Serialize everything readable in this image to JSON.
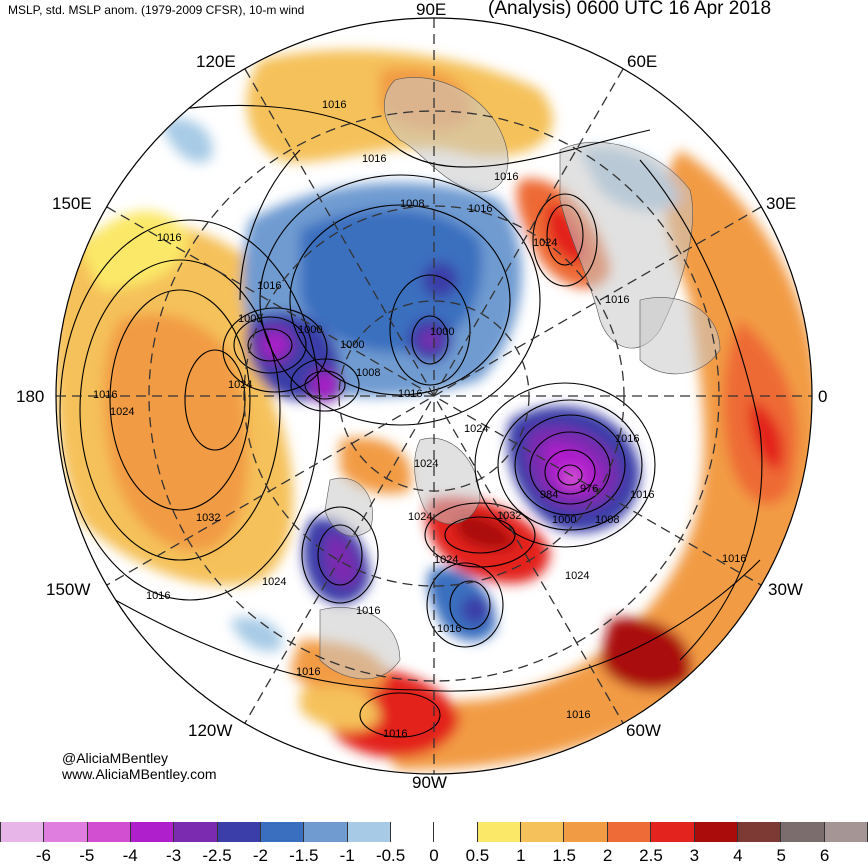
{
  "header": {
    "left_title": "MSLP, std. MSLP anom. (1979-2009 CFSR), 10-m wind",
    "right_title": "(Analysis) 0600 UTC 16 Apr 2018"
  },
  "longitude_labels": {
    "lon_90e": "90E",
    "lon_120e": "120E",
    "lon_60e": "60E",
    "lon_150e": "150E",
    "lon_30e": "30E",
    "lon_180": "180",
    "lon_0": "0",
    "lon_150w": "150W",
    "lon_30w": "30W",
    "lon_120w": "120W",
    "lon_60w": "60W",
    "lon_90w": "90W"
  },
  "isobar_labels": [
    "1016",
    "1016",
    "1016",
    "1016",
    "1008",
    "1016",
    "1024",
    "1016",
    "1016",
    "1008",
    "1000",
    "1000",
    "1000",
    "1008",
    "1016",
    "1016",
    "1024",
    "1024",
    "1024",
    "1016",
    "1024",
    "984",
    "976",
    "1016",
    "1000",
    "1008",
    "1024",
    "1032",
    "1024",
    "1032",
    "1024",
    "1016",
    "1016",
    "1016",
    "1016",
    "1016",
    "1016",
    "1024",
    "1016"
  ],
  "credits": {
    "handle": "@AliciaMBentley",
    "website": "www.AliciaMBentley.com"
  },
  "colorbar": {
    "ticks": [
      "-6",
      "-5",
      "-4",
      "-3",
      "-2.5",
      "-2",
      "-1.5",
      "-1",
      "-0.5",
      "0",
      "0.5",
      "1",
      "1.5",
      "2",
      "2.5",
      "3",
      "4",
      "5",
      "6"
    ],
    "colors": [
      "#e8b5e8",
      "#e07ee0",
      "#d24fd2",
      "#b01fcc",
      "#7a2bb0",
      "#3b3da8",
      "#3a6fbf",
      "#6f9bd1",
      "#a7cbe6",
      "#ffffff",
      "#ffffff",
      "#fbe868",
      "#f5c15a",
      "#f29b45",
      "#ee6a36",
      "#e3241e",
      "#aa0c0c",
      "#7d3a35",
      "#7b6d6d",
      "#a69595"
    ]
  },
  "colors": {
    "land": "#c8c8c8",
    "isobar": "#000000"
  }
}
